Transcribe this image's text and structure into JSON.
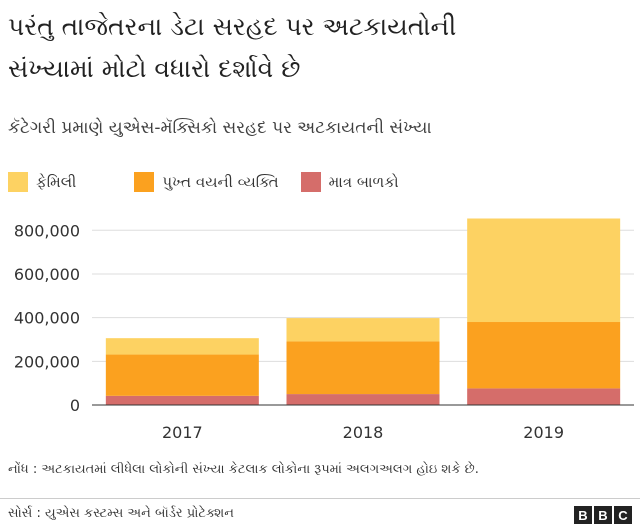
{
  "title_line1": "પરંતુ તાજેતરના ડેટા સરહદ પર અટકાયતોની",
  "title_line2": "સંખ્યામાં મોટો વધારો દર્શાવે છે",
  "subtitle": "કૅટેગરી પ્રમાણે યુએસ-મૅક્સિકો સરહદ પર અટકાયતની સંખ્યા",
  "note": "નોંધ : અટકાયતમાં લીધેલા લોકોની સંખ્યા કેટલાક લોકોના રૂપમાં અલગઅલગ હોઇ શકે છે.",
  "source": "સોર્સ : યુએસ કસ્ટમ્સ અને બૉર્ડર પ્રોટેક્શન",
  "logo_letters": [
    "B",
    "B",
    "C"
  ],
  "colors": {
    "family": "#FDD262",
    "adult": "#FBA11F",
    "children": "#D56D6A"
  },
  "chart_data": {
    "type": "bar",
    "stacked": true,
    "categories": [
      "2017",
      "2018",
      "2019"
    ],
    "series": [
      {
        "name": "માત્ર બાળકો",
        "key": "children",
        "values": [
          42000,
          50000,
          76000
        ]
      },
      {
        "name": "પુખ્ત વયની વ્યક્તિ",
        "key": "adult",
        "values": [
          189000,
          241000,
          304000
        ]
      },
      {
        "name": "ફેમિલી",
        "key": "family",
        "values": [
          75000,
          107000,
          474000
        ]
      }
    ],
    "legend_order": [
      "family",
      "adult",
      "children"
    ],
    "yticks": [
      0,
      200000,
      400000,
      600000,
      800000
    ],
    "ytick_labels": [
      "0",
      "200,000",
      "400,000",
      "600,000",
      "800,000"
    ],
    "ylim": [
      0,
      870000
    ],
    "grid": true,
    "legend_position": "top-left"
  }
}
